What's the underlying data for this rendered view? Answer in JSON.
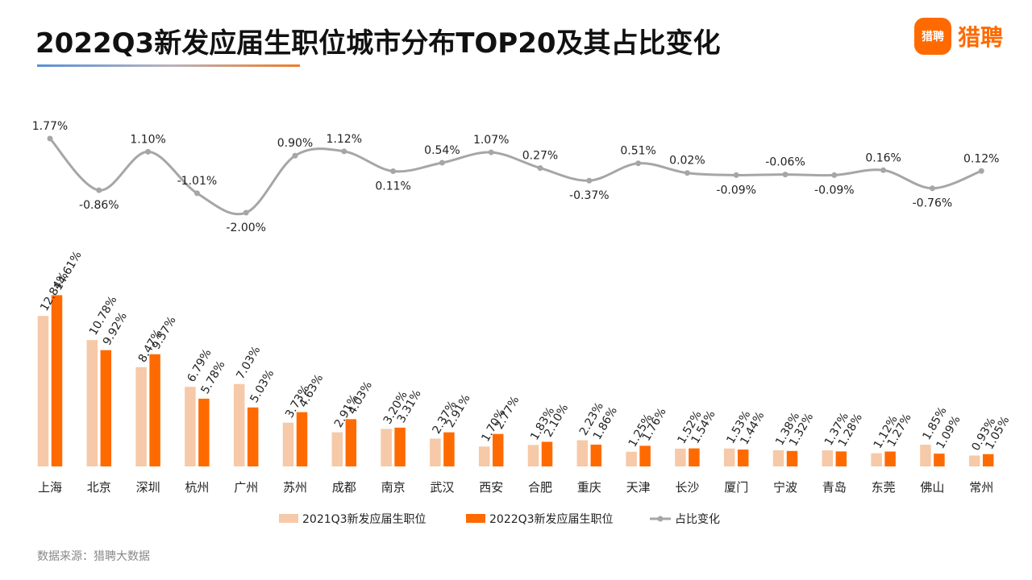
{
  "header": {
    "title": "2022Q3新发应届生职位城市分布TOP20及其占比变化",
    "logo_badge": "猎聘",
    "logo_text": "猎聘"
  },
  "source": "数据来源：猎聘大数据",
  "colors": {
    "bar_2021": "#f6c9a8",
    "bar_2022": "#ff6a00",
    "line": "#a6a6a6",
    "brand": "#ff6a00"
  },
  "chart_data": {
    "type": "bar+line",
    "categories": [
      "上海",
      "北京",
      "深圳",
      "杭州",
      "广州",
      "苏州",
      "成都",
      "南京",
      "武汉",
      "西安",
      "合肥",
      "重庆",
      "天津",
      "长沙",
      "厦门",
      "宁波",
      "青岛",
      "东莞",
      "佛山",
      "常州"
    ],
    "series": [
      {
        "name": "2021Q3新发应届生职位",
        "type": "bar",
        "unit": "%",
        "values": [
          12.84,
          10.78,
          8.47,
          6.79,
          7.03,
          3.73,
          2.91,
          3.2,
          2.37,
          1.7,
          1.83,
          2.23,
          1.25,
          1.52,
          1.53,
          1.38,
          1.37,
          1.12,
          1.85,
          0.93
        ],
        "labels": [
          "12.84%",
          "10.78%",
          "8.47%",
          "6.79%",
          "7.03%",
          "3.73%",
          "2.91%",
          "3.20%",
          "2.37%",
          "1.70%",
          "1.83%",
          "2.23%",
          "1.25%",
          "1.52%",
          "1.53%",
          "1.38%",
          "1.37%",
          "1.12%",
          "1.85%",
          "0.93%"
        ]
      },
      {
        "name": "2022Q3新发应届生职位",
        "type": "bar",
        "unit": "%",
        "values": [
          14.61,
          9.92,
          9.57,
          5.78,
          5.03,
          4.63,
          4.03,
          3.31,
          2.91,
          2.77,
          2.1,
          1.86,
          1.76,
          1.54,
          1.44,
          1.32,
          1.28,
          1.27,
          1.09,
          1.05
        ],
        "labels": [
          "14.61%",
          "9.92%",
          "9.57%",
          "5.78%",
          "5.03%",
          "4.63%",
          "4.03%",
          "3.31%",
          "2.91%",
          "2.77%",
          "2.10%",
          "1.86%",
          "1.76%",
          "1.54%",
          "1.44%",
          "1.32%",
          "1.28%",
          "1.27%",
          "1.09%",
          "1.05%"
        ]
      },
      {
        "name": "占比变化",
        "type": "line",
        "unit": "%",
        "values": [
          1.77,
          -0.86,
          1.1,
          -1.01,
          -2.0,
          0.9,
          1.12,
          0.11,
          0.54,
          1.07,
          0.27,
          -0.37,
          0.51,
          0.02,
          -0.09,
          -0.06,
          -0.09,
          0.16,
          -0.76,
          0.12
        ],
        "labels": [
          "1.77%",
          "-0.86%",
          "1.10%",
          "-1.01%",
          "-2.00%",
          "0.90%",
          "1.12%",
          "0.11%",
          "0.54%",
          "1.07%",
          "0.27%",
          "-0.37%",
          "0.51%",
          "0.02%",
          "-0.09%",
          "-0.06%",
          "-0.09%",
          "0.16%",
          "-0.76%",
          "0.12%"
        ]
      }
    ],
    "bar_ylim": [
      0,
      15
    ],
    "line_ylim": [
      -2.0,
      1.77
    ],
    "legend_position": "bottom-center",
    "grid": false
  }
}
